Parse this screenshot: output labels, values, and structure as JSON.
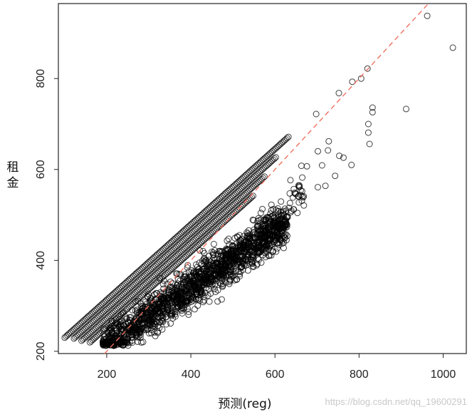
{
  "chart_data": {
    "type": "scatter",
    "xlabel": "预测(reg)",
    "ylabel": "租金",
    "xlim": [
      85,
      1055
    ],
    "ylim": [
      195,
      965
    ],
    "xticks": [
      200,
      400,
      600,
      800,
      1000
    ],
    "yticks": [
      200,
      400,
      600,
      800
    ],
    "reference_line": {
      "type": "y=x",
      "style": "dashed",
      "color": "#f07060"
    },
    "point_color": "#000000",
    "outliers": [
      {
        "x": 962,
        "y": 938
      },
      {
        "x": 1023,
        "y": 868
      },
      {
        "x": 912,
        "y": 733
      },
      {
        "x": 832,
        "y": 736
      },
      {
        "x": 832,
        "y": 726
      },
      {
        "x": 822,
        "y": 700
      },
      {
        "x": 822,
        "y": 681
      },
      {
        "x": 825,
        "y": 656
      },
      {
        "x": 820,
        "y": 822
      },
      {
        "x": 805,
        "y": 800
      },
      {
        "x": 784,
        "y": 793
      },
      {
        "x": 752,
        "y": 768
      },
      {
        "x": 753,
        "y": 630
      },
      {
        "x": 763,
        "y": 626
      },
      {
        "x": 782,
        "y": 610
      },
      {
        "x": 698,
        "y": 722
      },
      {
        "x": 728,
        "y": 662
      },
      {
        "x": 726,
        "y": 642
      },
      {
        "x": 702,
        "y": 640
      },
      {
        "x": 712,
        "y": 609
      },
      {
        "x": 743,
        "y": 586
      },
      {
        "x": 720,
        "y": 564
      },
      {
        "x": 702,
        "y": 561
      },
      {
        "x": 676,
        "y": 607
      },
      {
        "x": 663,
        "y": 608
      },
      {
        "x": 658,
        "y": 565
      },
      {
        "x": 661,
        "y": 554
      },
      {
        "x": 648,
        "y": 547
      },
      {
        "x": 664,
        "y": 531
      },
      {
        "x": 655,
        "y": 541
      }
    ],
    "diagonal_bands": [
      {
        "x_start": 100,
        "x_end": 632,
        "ratio": 2.3,
        "intercept": 0
      },
      {
        "x_start": 122,
        "x_end": 602,
        "ratio": 2.3,
        "intercept": -20
      },
      {
        "x_start": 140,
        "x_end": 575,
        "ratio": 2.3,
        "intercept": -40
      },
      {
        "x_start": 160,
        "x_end": 548,
        "ratio": 2.3,
        "intercept": -60
      }
    ]
  },
  "watermark": "https://blog.csdn.net/qq_19600291"
}
